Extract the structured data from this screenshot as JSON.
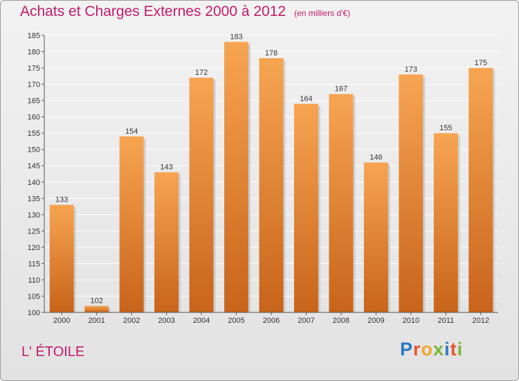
{
  "header": {
    "title": "Achats et Charges Externes 2000 à 2012",
    "subtitle": "(en milliers d'€)"
  },
  "footer": {
    "commune": "L' ÉTOILE",
    "logo_letters": [
      "P",
      "r",
      "o",
      "x",
      "i",
      "t",
      "i"
    ],
    "logo_colors": [
      "#2b78c5",
      "#e8542a",
      "#f0a830",
      "#7ab53a",
      "#2b78c5",
      "#e8542a",
      "#7ab53a"
    ]
  },
  "colors": {
    "bar_top": "#f7a552",
    "bar_bottom": "#c8641a",
    "title": "#c21a6a",
    "grid": "#ffffff",
    "text": "#333333"
  },
  "chart_data": {
    "type": "bar",
    "title": "Achats et Charges Externes 2000 à 2012",
    "subtitle": "(en milliers d'€)",
    "categories": [
      "2000",
      "2001",
      "2002",
      "2003",
      "2004",
      "2005",
      "2006",
      "2007",
      "2008",
      "2009",
      "2010",
      "2011",
      "2012"
    ],
    "values": [
      133,
      102,
      154,
      143,
      172,
      183,
      178,
      164,
      167,
      146,
      173,
      155,
      175
    ],
    "ylim": [
      100,
      185
    ],
    "yticks": [
      100,
      105,
      110,
      115,
      120,
      125,
      130,
      135,
      140,
      145,
      150,
      155,
      160,
      165,
      170,
      175,
      180,
      185
    ],
    "xlabel": "",
    "ylabel": "",
    "grid": true,
    "data_labels": true
  }
}
